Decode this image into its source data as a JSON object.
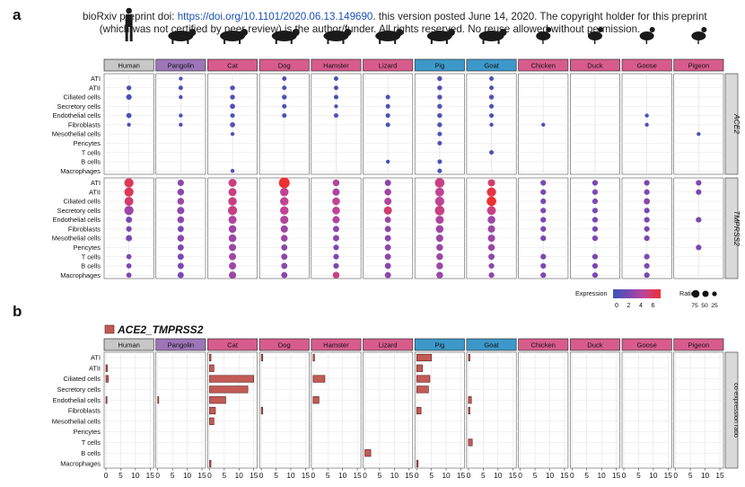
{
  "preprint": {
    "prefix": "bioRxiv preprint doi: ",
    "doi_url": "https://doi.org/10.1101/2020.06.13.149690",
    "line1_suffix": ". this version posted June 14, 2020. The copyright holder for this preprint",
    "line2": "(which was not certified by peer review) is the author/funder. All rights reserved. No reuse allowed without permission."
  },
  "colors": {
    "human": "#c7c7c7",
    "pangolin": "#9d76b8",
    "pink": "#d75c8c",
    "blue": "#3c98c9",
    "strip_border": "#333333",
    "bar_fill": "#c25b56",
    "bar_stroke": "#5a1f1f",
    "grid": "#e4e4e4",
    "low": "#3b54b8",
    "high": "#ee3030"
  },
  "chart_data": [
    {
      "panel": "a",
      "type": "dot",
      "species": [
        "Human",
        "Pangolin",
        "Cat",
        "Dog",
        "Hamster",
        "Lizard",
        "Pig",
        "Goat",
        "Chicken",
        "Duck",
        "Goose",
        "Pigeon"
      ],
      "species_icons": [
        "human-icon",
        "pangolin-icon",
        "cat-icon",
        "dog-icon",
        "hamster-icon",
        "lizard-icon",
        "pig-icon",
        "goat-icon",
        "chicken-icon",
        "duck-icon",
        "goose-icon",
        "pigeon-icon"
      ],
      "cell_types": [
        "ATI",
        "ATII",
        "Ciliated cells",
        "Secretory cells",
        "Endothelial cells",
        "Fibroblasts",
        "Mesothelial cells",
        "Pericytes",
        "T cells",
        "B cells",
        "Macrophages"
      ],
      "legend": {
        "expression_title": "Expression",
        "expression_ticks": [
          "0",
          "2",
          "4",
          "6"
        ],
        "ratio_title": "Ratio",
        "ratio_ticks": [
          "75",
          "50",
          "25"
        ]
      },
      "genes": [
        {
          "gene": "ACE2",
          "ratio": [
            [
              0,
              10,
              15,
              0,
              12,
              5,
              0,
              0,
              0,
              0,
              0
            ],
            [
              5,
              8,
              5,
              0,
              5,
              5,
              0,
              0,
              0,
              0,
              0
            ],
            [
              0,
              10,
              10,
              12,
              8,
              12,
              5,
              0,
              0,
              0,
              5
            ],
            [
              8,
              8,
              10,
              8,
              8,
              0,
              0,
              0,
              0,
              0,
              0
            ],
            [
              8,
              8,
              8,
              5,
              8,
              0,
              0,
              0,
              0,
              0,
              0
            ],
            [
              0,
              0,
              8,
              8,
              8,
              8,
              0,
              0,
              0,
              5,
              0
            ],
            [
              10,
              10,
              10,
              10,
              10,
              10,
              8,
              8,
              0,
              8,
              8
            ],
            [
              8,
              8,
              10,
              8,
              8,
              5,
              0,
              0,
              8,
              0,
              0
            ],
            [
              0,
              0,
              0,
              0,
              0,
              5,
              0,
              0,
              0,
              0,
              0
            ],
            [
              0,
              0,
              0,
              0,
              0,
              0,
              0,
              0,
              0,
              0,
              0
            ],
            [
              0,
              0,
              0,
              0,
              5,
              5,
              0,
              0,
              0,
              0,
              0
            ],
            [
              0,
              0,
              0,
              0,
              0,
              0,
              5,
              0,
              0,
              0,
              0
            ]
          ],
          "expr": [
            [
              0,
              0.5,
              0.5,
              0,
              0.5,
              0.5,
              0,
              0,
              0,
              0,
              0
            ],
            [
              0.5,
              0.5,
              0.5,
              0,
              0.5,
              0.5,
              0,
              0,
              0,
              0,
              0
            ],
            [
              0,
              0.5,
              0.8,
              0.8,
              0.5,
              0.8,
              0.5,
              0,
              0,
              0,
              0.5
            ],
            [
              0.5,
              0.5,
              0.5,
              0.5,
              0.5,
              0,
              0,
              0,
              0,
              0,
              0
            ],
            [
              0.5,
              0.5,
              0.5,
              0.5,
              0.5,
              0,
              0,
              0,
              0,
              0,
              0
            ],
            [
              0,
              0,
              0.5,
              0.5,
              0.5,
              0.5,
              0,
              0,
              0,
              0,
              0
            ],
            [
              0.8,
              0.8,
              0.8,
              0.8,
              0.8,
              0.8,
              0.5,
              0.5,
              0,
              0.5,
              0.5
            ],
            [
              0.5,
              0.5,
              0.8,
              0.5,
              0.5,
              0.5,
              0,
              0,
              0.5,
              0,
              0
            ],
            [
              0,
              0,
              0,
              0,
              0,
              0.5,
              0,
              0,
              0,
              0,
              0
            ],
            [
              0,
              0,
              0,
              0,
              0,
              0,
              0,
              0,
              0,
              0,
              0
            ],
            [
              0,
              0,
              0,
              0,
              0.5,
              0.5,
              0,
              0,
              0,
              0,
              0
            ],
            [
              0,
              0,
              0,
              0,
              0,
              0,
              0.5,
              0,
              0,
              0,
              0
            ]
          ]
        },
        {
          "gene": "TMPRSS2",
          "ratio": [
            [
              55,
              55,
              50,
              55,
              20,
              15,
              20,
              0,
              12,
              12,
              12
            ],
            [
              22,
              25,
              25,
              30,
              25,
              20,
              25,
              20,
              20,
              20,
              20
            ],
            [
              40,
              40,
              45,
              55,
              40,
              35,
              35,
              30,
              30,
              30,
              30
            ],
            [
              80,
              45,
              45,
              45,
              40,
              30,
              25,
              20,
              20,
              20,
              20
            ],
            [
              25,
              30,
              35,
              35,
              30,
              20,
              20,
              15,
              15,
              15,
              25
            ],
            [
              20,
              25,
              30,
              40,
              20,
              20,
              20,
              20,
              20,
              20,
              20
            ],
            [
              60,
              50,
              55,
              60,
              40,
              35,
              30,
              25,
              25,
              25,
              25
            ],
            [
              30,
              55,
              60,
              50,
              35,
              30,
              30,
              25,
              20,
              15,
              15
            ],
            [
              15,
              15,
              15,
              15,
              15,
              15,
              15,
              0,
              15,
              15,
              15
            ],
            [
              15,
              15,
              15,
              15,
              15,
              15,
              15,
              0,
              15,
              15,
              15
            ],
            [
              15,
              15,
              20,
              15,
              15,
              15,
              15,
              0,
              15,
              15,
              15
            ],
            [
              15,
              15,
              0,
              0,
              15,
              0,
              0,
              15,
              0,
              0,
              0
            ]
          ],
          "expr": [
            [
              5.5,
              5.5,
              5,
              3,
              2,
              2,
              2,
              0,
              2,
              2,
              2
            ],
            [
              2.5,
              2.5,
              3,
              2.5,
              2.5,
              2,
              2.5,
              2,
              2,
              2,
              2
            ],
            [
              4.5,
              4.5,
              4.5,
              4.5,
              3.5,
              3,
              3,
              3,
              3,
              3,
              3
            ],
            [
              6.5,
              4,
              4,
              4,
              3.5,
              3,
              3,
              2.5,
              2.5,
              2.5,
              2.5
            ],
            [
              3.5,
              3.5,
              4,
              4,
              3.5,
              2.5,
              2.5,
              2,
              2,
              2,
              4.5
            ],
            [
              2.5,
              3,
              3.5,
              5,
              3,
              2.5,
              2.5,
              2.5,
              2.5,
              2.5,
              2.5
            ],
            [
              4.5,
              4,
              4,
              4.5,
              3.5,
              3,
              3,
              3,
              3,
              3,
              3
            ],
            [
              5,
              6,
              6.5,
              4.5,
              3,
              3,
              3,
              3,
              2.5,
              2.5,
              2.5
            ],
            [
              2,
              2,
              2,
              2,
              2,
              2,
              2,
              0,
              2,
              2,
              2
            ],
            [
              2,
              2,
              2,
              2,
              2,
              2,
              2,
              0,
              2,
              2,
              2
            ],
            [
              2,
              2,
              2.5,
              2,
              2,
              2,
              2,
              0,
              2,
              2,
              2
            ],
            [
              2,
              2,
              0,
              0,
              2,
              0,
              0,
              2,
              0,
              0,
              0
            ]
          ]
        }
      ]
    },
    {
      "panel": "b",
      "type": "bar",
      "orientation": "horizontal",
      "series_label": "ACE2_TMPRSS2",
      "y_axis_title": "co-expression ratio",
      "species": [
        "Human",
        "Pangolin",
        "Cat",
        "Dog",
        "Hamster",
        "Lizard",
        "Pig",
        "Goat",
        "Chicken",
        "Duck",
        "Goose",
        "Pigeon"
      ],
      "cell_types": [
        "ATI",
        "ATII",
        "Ciliated cells",
        "Secretory cells",
        "Endothelial cells",
        "Fibroblasts",
        "Mesothelial cells",
        "Pericytes",
        "T cells",
        "B cells",
        "Macrophages"
      ],
      "x_ticks": [
        "0",
        "5",
        "10",
        "15"
      ],
      "xlim": [
        0,
        15
      ],
      "values": [
        [
          0,
          0.5,
          0.8,
          0,
          0.2,
          0,
          0,
          0,
          0,
          0,
          0
        ],
        [
          0,
          0,
          0,
          0,
          0.2,
          0,
          0,
          0,
          0,
          0,
          0
        ],
        [
          0.5,
          1.5,
          15,
          13,
          5.5,
          2,
          1.5,
          0,
          0,
          0,
          0.5
        ],
        [
          0.5,
          0,
          0,
          0,
          0,
          0.5,
          0,
          0,
          0,
          0,
          0
        ],
        [
          0.5,
          0,
          4,
          0,
          2,
          0,
          0,
          0,
          0,
          0,
          0
        ],
        [
          0,
          0,
          0,
          0,
          0,
          0,
          0,
          0,
          0,
          2,
          0
        ],
        [
          5,
          2,
          4.5,
          4,
          0,
          1.5,
          0,
          0,
          0,
          0,
          0.5
        ],
        [
          0.5,
          0,
          0,
          0,
          1,
          0.5,
          0,
          0,
          1.3,
          0,
          0
        ],
        [
          0,
          0,
          0,
          0,
          0,
          0,
          0,
          0,
          0,
          0,
          0
        ],
        [
          0,
          0,
          0,
          0,
          0,
          0,
          0,
          0,
          0,
          0,
          0
        ],
        [
          0,
          0,
          0,
          0,
          0,
          0,
          0,
          0,
          0,
          0,
          0
        ],
        [
          0,
          0,
          0,
          0,
          0,
          0,
          0,
          0,
          0,
          0,
          0
        ]
      ]
    }
  ]
}
